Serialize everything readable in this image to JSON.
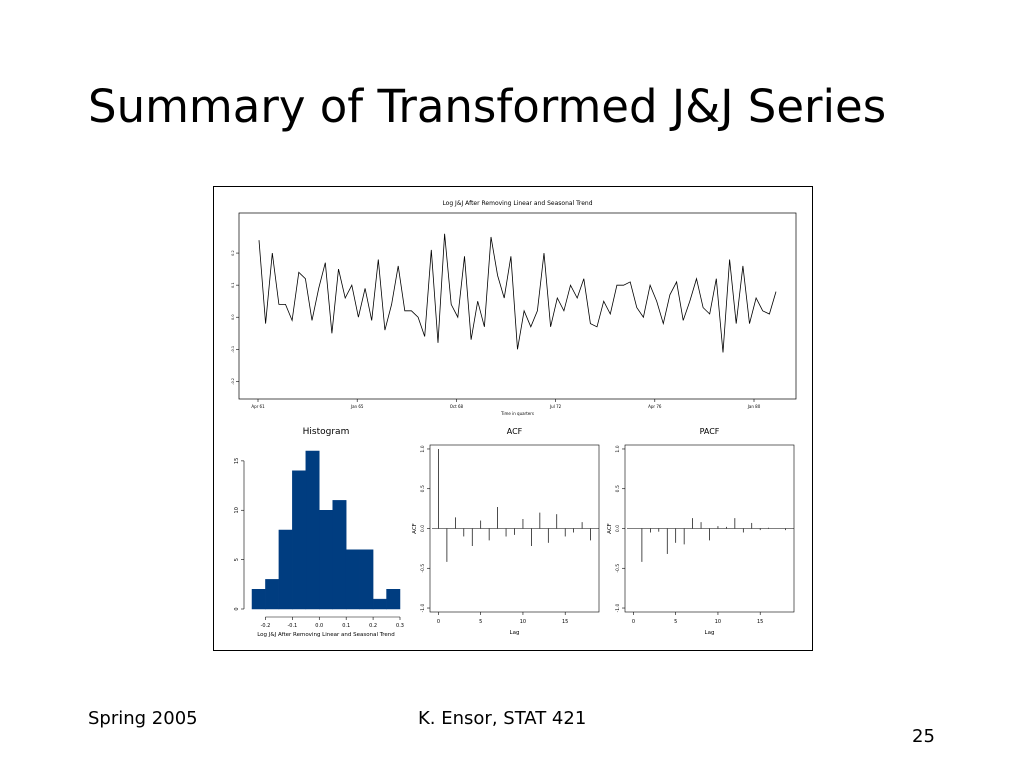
{
  "slide": {
    "title": "Summary of Transformed J&J Series",
    "footer_left": "Spring 2005",
    "footer_center": "K. Ensor, STAT 421",
    "page_number": "25"
  },
  "chart_data": [
    {
      "type": "line",
      "title": "Log J&J After Removing Linear and Seasonal Trend",
      "xlabel": "Time in quarters",
      "ylabel": "",
      "x_tick_labels": [
        "Apr 61",
        "Jan 65",
        "Oct 68",
        "Jul 72",
        "Apr 76",
        "Jan 80"
      ],
      "y_tick_labels": [
        "-0.2",
        "-0.1",
        "0.0",
        "0.1",
        "0.2"
      ],
      "ylim": [
        -0.23,
        0.3
      ],
      "values": [
        0.24,
        -0.02,
        0.2,
        0.04,
        0.04,
        -0.01,
        0.14,
        0.12,
        -0.01,
        0.09,
        0.17,
        -0.05,
        0.15,
        0.06,
        0.1,
        0.0,
        0.09,
        -0.01,
        0.18,
        -0.04,
        0.04,
        0.16,
        0.02,
        0.02,
        0.0,
        -0.06,
        0.21,
        -0.08,
        0.26,
        0.04,
        0.0,
        0.19,
        -0.07,
        0.05,
        -0.03,
        0.25,
        0.13,
        0.06,
        0.19,
        -0.1,
        0.02,
        -0.03,
        0.02,
        0.2,
        -0.03,
        0.06,
        0.02,
        0.1,
        0.06,
        0.12,
        -0.02,
        -0.03,
        0.05,
        0.01,
        0.1,
        0.1,
        0.11,
        0.03,
        0.0,
        0.1,
        0.05,
        -0.02,
        0.07,
        0.11,
        -0.01,
        0.05,
        0.12,
        0.03,
        0.01,
        0.12,
        -0.11,
        0.18,
        -0.02,
        0.16,
        -0.02,
        0.06,
        0.02,
        0.01,
        0.08
      ]
    },
    {
      "type": "bar",
      "subtype": "histogram",
      "title": "Histogram",
      "xlabel": "Log J&J After Removing Linear and Seasonal Trend",
      "bin_edges": [
        -0.25,
        -0.2,
        -0.15,
        -0.1,
        -0.05,
        0.0,
        0.05,
        0.1,
        0.15,
        0.2,
        0.25,
        0.3
      ],
      "values": [
        2,
        3,
        8,
        14,
        16,
        10,
        11,
        6,
        6,
        1,
        2
      ],
      "xlim": [
        -0.25,
        0.3
      ],
      "ylim": [
        0,
        16
      ],
      "x_ticks": [
        -0.2,
        -0.1,
        0.0,
        0.1,
        0.2,
        0.3
      ],
      "x_tick_labels": [
        "-0.2",
        "-0.1",
        "0.0",
        "0.1",
        "0.2",
        "0.3"
      ],
      "y_ticks": [
        0,
        5,
        10,
        15
      ],
      "y_tick_labels": [
        "0",
        "5",
        "10",
        "15"
      ],
      "color": "#003d80"
    },
    {
      "type": "bar",
      "subtype": "acf",
      "title": "ACF",
      "xlabel": "Lag",
      "ylabel": "ACF",
      "lags": [
        0,
        1,
        2,
        3,
        4,
        5,
        6,
        7,
        8,
        9,
        10,
        11,
        12,
        13,
        14,
        15,
        16,
        17,
        18
      ],
      "values": [
        1.0,
        -0.42,
        0.14,
        -0.1,
        -0.22,
        0.1,
        -0.15,
        0.27,
        -0.1,
        -0.08,
        0.12,
        -0.22,
        0.2,
        -0.18,
        0.18,
        -0.1,
        -0.05,
        0.08,
        -0.15
      ],
      "xlim": [
        -1,
        19
      ],
      "ylim": [
        -1.05,
        1.05
      ],
      "x_ticks": [
        0,
        5,
        10,
        15
      ],
      "x_tick_labels": [
        "0",
        "5",
        "10",
        "15"
      ],
      "y_ticks": [
        -1.0,
        -0.5,
        0.0,
        0.5,
        1.0
      ],
      "y_tick_labels": [
        "-1.0",
        "-0.5",
        "0.0",
        "0.5",
        "1.0"
      ]
    },
    {
      "type": "bar",
      "subtype": "pacf",
      "title": "PACF",
      "xlabel": "Lag",
      "ylabel": "ACF",
      "lags": [
        1,
        2,
        3,
        4,
        5,
        6,
        7,
        8,
        9,
        10,
        11,
        12,
        13,
        14,
        15,
        16,
        17,
        18
      ],
      "values": [
        -0.42,
        -0.05,
        -0.04,
        -0.32,
        -0.18,
        -0.2,
        0.13,
        0.08,
        -0.15,
        0.03,
        0.02,
        0.13,
        -0.05,
        0.07,
        -0.02,
        0.01,
        0.0,
        -0.02
      ],
      "xlim": [
        -1,
        19
      ],
      "ylim": [
        -1.05,
        1.05
      ],
      "x_ticks": [
        0,
        5,
        10,
        15
      ],
      "x_tick_labels": [
        "0",
        "5",
        "10",
        "15"
      ],
      "y_ticks": [
        -1.0,
        -0.5,
        0.0,
        0.5,
        1.0
      ],
      "y_tick_labels": [
        "-1.0",
        "-0.5",
        "0.0",
        "0.5",
        "1.0"
      ]
    }
  ]
}
